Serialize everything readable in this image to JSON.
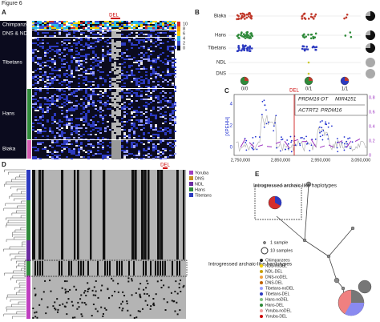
{
  "figure_title": "Figure 6",
  "panels": {
    "a": {
      "label": "A",
      "marker": "DEL",
      "groups": [
        "Chimpanzees",
        "DNS & NDL",
        "Tibetans",
        "Hans",
        "Biaka"
      ],
      "scale": [
        "10",
        "8",
        "6",
        "4",
        "2",
        "0"
      ]
    },
    "b": {
      "label": "B",
      "rows": [
        "Biaka",
        "Hans",
        "Tibetans",
        "NDL",
        "DNS"
      ],
      "genotypes": [
        "0/0",
        "0/1",
        "1/1"
      ]
    },
    "c": {
      "label": "C",
      "marker": "DEL",
      "y_label": "|XPEHH|",
      "genes": [
        "PRDM16-DT",
        "MIR4251",
        "ACTRT2",
        "PRDM16"
      ],
      "x_ticks": [
        "2,750,000",
        "2,850,000",
        "2,950,000",
        "3,050,000"
      ],
      "y_ticks": [
        "4",
        "2",
        "0"
      ],
      "y2_ticks": [
        "0.8",
        "0.6",
        "0.4",
        "0.2",
        "0"
      ]
    },
    "d": {
      "label": "D",
      "marker": "DEL",
      "legend": [
        "Yoruba",
        "DNS",
        "NDL",
        "Hans",
        "Tibetans"
      ],
      "annotation": "Introgressed archaic-like haplotypes"
    },
    "e": {
      "label": "E",
      "annotation": "Introgressed archaic-like haplotypes",
      "size_legend": [
        "1 sample",
        "10 samples"
      ],
      "legend": [
        "Chimpanzees",
        "NDL-noDEL",
        "NDL-DEL",
        "DNS-noDEL",
        "DNS-DEL",
        "Tibetans-noDEL",
        "Tibetans-DEL",
        "Hans-noDEL",
        "Hans-DEL",
        "Yoruba-noDEL",
        "Yoruba-DEL"
      ]
    }
  }
}
